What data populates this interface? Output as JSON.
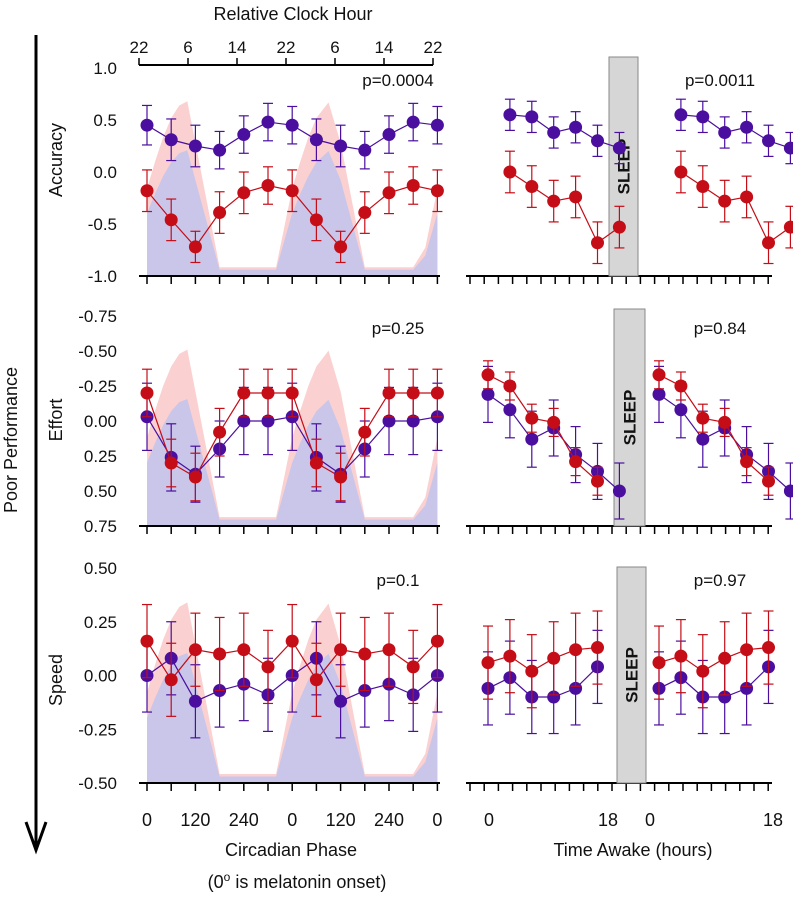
{
  "figure": {
    "top_axis_title": "Relative Clock Hour",
    "top_axis_ticks": [
      "22",
      "6",
      "14",
      "22",
      "6",
      "14",
      "22"
    ],
    "y_main_label": "Poor Performance",
    "x_left_label": "Circadian Phase",
    "x_left_sublabel_pre": "(0",
    "x_left_sublabel_sup": "o",
    "x_left_sublabel_post": " is melatonin onset)",
    "x_right_label": "Time Awake (hours)",
    "x_left_ticks": [
      "0",
      "120",
      "240",
      "0",
      "120",
      "240",
      "0"
    ],
    "x_right_ticks": [
      "0",
      "18",
      "0",
      "18"
    ],
    "sleep_label": "SLEEP"
  },
  "colors": {
    "red": "#c40d17",
    "purple": "#4a0f9e",
    "pink_band": "#fbd0d0",
    "lavender_band": "#c9c6ea",
    "sleep_box": "#d6d6d6"
  },
  "chart_data": [
    {
      "type": "line",
      "panel": "accuracy-circadian",
      "ylabel": "Accuracy",
      "ylim": [
        -1.0,
        1.0
      ],
      "y_ticks": [
        "1.0",
        "0.5",
        "0.0",
        "-0.5",
        "-1.0"
      ],
      "y_inverted": false,
      "p_value": "p=0.0004",
      "x": [
        0,
        60,
        120,
        180,
        240,
        300,
        360,
        420,
        480,
        540,
        600,
        660,
        720
      ],
      "series": [
        {
          "name": "purple",
          "values": [
            0.45,
            0.31,
            0.25,
            0.21,
            0.36,
            0.48,
            0.45,
            0.31,
            0.25,
            0.21,
            0.36,
            0.48,
            0.45
          ],
          "errors": [
            0.19,
            0.2,
            0.2,
            0.18,
            0.18,
            0.18,
            0.18,
            0.2,
            0.2,
            0.18,
            0.18,
            0.18,
            0.18
          ]
        },
        {
          "name": "red",
          "values": [
            -0.18,
            -0.46,
            -0.72,
            -0.39,
            -0.2,
            -0.13,
            -0.18,
            -0.46,
            -0.72,
            -0.39,
            -0.2,
            -0.13,
            -0.18
          ],
          "errors": [
            0.2,
            0.2,
            0.15,
            0.2,
            0.2,
            0.18,
            0.2,
            0.2,
            0.15,
            0.2,
            0.2,
            0.18,
            0.2
          ]
        }
      ]
    },
    {
      "type": "line",
      "panel": "accuracy-time-awake",
      "ylabel": "Accuracy",
      "ylim": [
        -1.0,
        1.0
      ],
      "y_inverted": false,
      "p_value": "p=0.0011",
      "xlim": [
        0,
        18
      ],
      "x": [
        2,
        4,
        6,
        8,
        10,
        12,
        14,
        16
      ],
      "series": [
        {
          "name": "purple",
          "values": [
            null,
            0.55,
            0.53,
            0.38,
            0.43,
            0.3,
            0.23,
            null
          ],
          "errors": [
            null,
            0.15,
            0.15,
            0.15,
            0.15,
            0.15,
            0.15,
            null
          ]
        },
        {
          "name": "red",
          "values": [
            null,
            0.0,
            -0.14,
            -0.28,
            -0.24,
            -0.68,
            -0.53,
            null
          ],
          "errors": [
            null,
            0.2,
            0.2,
            0.2,
            0.2,
            0.2,
            0.2,
            null
          ]
        }
      ]
    },
    {
      "type": "line",
      "panel": "effort-circadian",
      "ylabel": "Effort",
      "ylim": [
        -0.75,
        0.75
      ],
      "y_ticks": [
        "-0.75",
        "-0.50",
        "-0.25",
        "0.00",
        "0.25",
        "0.50",
        "0.75"
      ],
      "y_inverted": true,
      "p_value": "p=0.25",
      "x": [
        0,
        60,
        120,
        180,
        240,
        300,
        360,
        420,
        480,
        540,
        600,
        660,
        720
      ],
      "series": [
        {
          "name": "purple",
          "values": [
            -0.03,
            0.26,
            0.38,
            0.2,
            0.0,
            0.0,
            -0.03,
            0.26,
            0.38,
            0.2,
            0.0,
            0.0,
            -0.03
          ],
          "errors": [
            0.24,
            0.24,
            0.2,
            0.2,
            0.24,
            0.24,
            0.24,
            0.24,
            0.2,
            0.2,
            0.24,
            0.24,
            0.24
          ]
        },
        {
          "name": "red",
          "values": [
            -0.2,
            0.3,
            0.4,
            0.08,
            -0.2,
            -0.2,
            -0.2,
            0.3,
            0.4,
            0.08,
            -0.2,
            -0.2,
            -0.2
          ],
          "errors": [
            0.17,
            0.17,
            0.17,
            0.17,
            0.17,
            0.17,
            0.17,
            0.17,
            0.17,
            0.17,
            0.17,
            0.17,
            0.17
          ]
        }
      ]
    },
    {
      "type": "line",
      "panel": "effort-time-awake",
      "ylabel": "Effort",
      "ylim": [
        -0.75,
        0.75
      ],
      "y_inverted": true,
      "p_value": "p=0.84",
      "xlim": [
        0,
        18
      ],
      "x": [
        2,
        4,
        6,
        8,
        10,
        12,
        14,
        16
      ],
      "series": [
        {
          "name": "purple",
          "values": [
            -0.19,
            -0.08,
            0.13,
            0.05,
            0.24,
            0.36,
            0.5,
            null
          ],
          "errors": [
            0.2,
            0.2,
            0.2,
            0.2,
            0.2,
            0.2,
            0.2,
            null
          ]
        },
        {
          "name": "red",
          "values": [
            -0.33,
            -0.25,
            -0.02,
            0.01,
            0.29,
            0.43,
            null,
            null
          ],
          "errors": [
            0.1,
            0.1,
            0.1,
            0.1,
            0.1,
            0.1,
            null,
            null
          ]
        }
      ]
    },
    {
      "type": "line",
      "panel": "speed-circadian",
      "ylabel": "Speed",
      "ylim": [
        -0.5,
        0.5
      ],
      "y_ticks": [
        "0.50",
        "0.25",
        "0.00",
        "-0.25",
        "-0.50"
      ],
      "y_inverted": false,
      "p_value": "p=0.1",
      "x": [
        0,
        60,
        120,
        180,
        240,
        300,
        360,
        420,
        480,
        540,
        600,
        660,
        720
      ],
      "series": [
        {
          "name": "purple",
          "values": [
            0.0,
            0.08,
            -0.12,
            -0.07,
            -0.04,
            -0.09,
            0.0,
            0.08,
            -0.12,
            -0.07,
            -0.04,
            -0.09,
            0.0
          ],
          "errors": [
            0.17,
            0.17,
            0.17,
            0.17,
            0.17,
            0.17,
            0.17,
            0.17,
            0.17,
            0.17,
            0.17,
            0.17,
            0.17
          ]
        },
        {
          "name": "red",
          "values": [
            0.16,
            -0.02,
            0.12,
            0.1,
            0.12,
            0.04,
            0.16,
            -0.02,
            0.12,
            0.1,
            0.12,
            0.04,
            0.16
          ],
          "errors": [
            0.17,
            0.17,
            0.17,
            0.17,
            0.17,
            0.17,
            0.17,
            0.17,
            0.17,
            0.17,
            0.17,
            0.17,
            0.17
          ]
        }
      ]
    },
    {
      "type": "line",
      "panel": "speed-time-awake",
      "ylabel": "Speed",
      "ylim": [
        -0.5,
        0.5
      ],
      "y_inverted": false,
      "p_value": "p=0.97",
      "xlim": [
        0,
        18
      ],
      "x": [
        2,
        4,
        6,
        8,
        10,
        12,
        14,
        16
      ],
      "series": [
        {
          "name": "purple",
          "values": [
            -0.06,
            -0.01,
            -0.1,
            -0.1,
            -0.06,
            0.04,
            null,
            null
          ],
          "errors": [
            0.17,
            0.17,
            0.17,
            0.17,
            0.17,
            0.17,
            null,
            null
          ]
        },
        {
          "name": "red",
          "values": [
            0.06,
            0.09,
            0.02,
            0.08,
            0.12,
            0.13,
            null,
            null
          ],
          "errors": [
            0.17,
            0.17,
            0.17,
            0.17,
            0.17,
            0.17,
            null,
            null
          ]
        }
      ]
    }
  ]
}
